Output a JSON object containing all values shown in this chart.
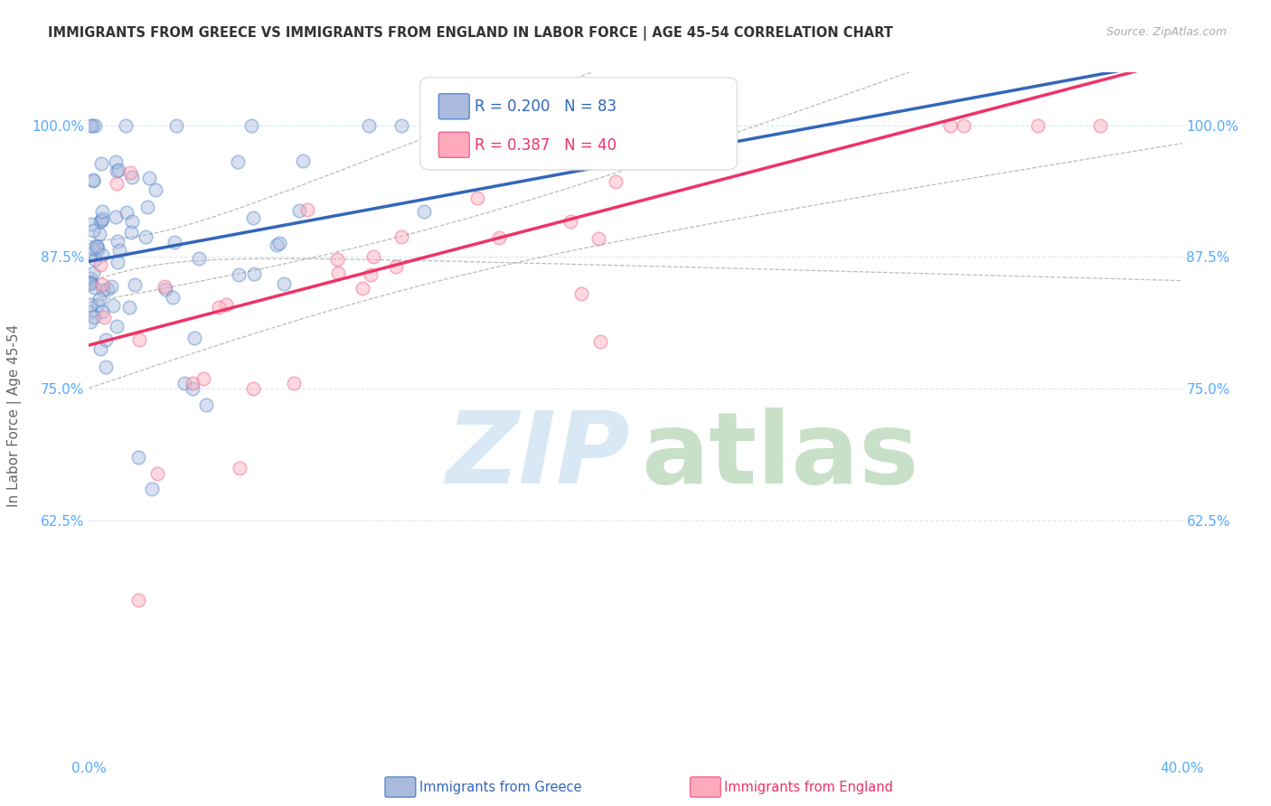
{
  "title": "IMMIGRANTS FROM GREECE VS IMMIGRANTS FROM ENGLAND IN LABOR FORCE | AGE 45-54 CORRELATION CHART",
  "source": "Source: ZipAtlas.com",
  "ylabel": "In Labor Force | Age 45-54",
  "r_greece": 0.2,
  "n_greece": 83,
  "r_england": 0.387,
  "n_england": 40,
  "color_greece_fill": "#AABBDD",
  "color_greece_edge": "#5588CC",
  "color_greece_line": "#3366BB",
  "color_england_fill": "#FFAABC",
  "color_england_edge": "#EE6688",
  "color_england_line": "#EE3366",
  "color_axis_labels": "#55AAFF",
  "color_grid": "#BBDDEE",
  "color_title": "#333333",
  "legend_label_greece": "Immigrants from Greece",
  "legend_label_england": "Immigrants from England",
  "x_min": 0.0,
  "x_max": 40.0,
  "y_min": 40.0,
  "y_max": 105.0,
  "y_ticks": [
    40.0,
    62.5,
    75.0,
    87.5,
    100.0
  ],
  "x_ticks": [
    0.0,
    10.0,
    20.0,
    30.0,
    40.0
  ],
  "watermark_zip_color": "#D8E8F5",
  "watermark_atlas_color": "#C8E0C8"
}
